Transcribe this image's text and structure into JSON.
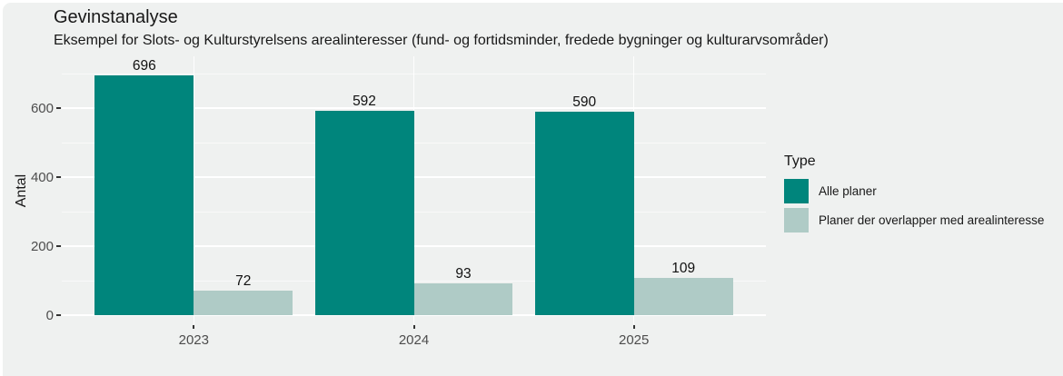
{
  "title": "Gevinstanalyse",
  "subtitle": "Eksempel for Slots- og Kulturstyrelsens arealinteresser (fund- og fortidsminder, fredede bygninger og kulturarvsområder)",
  "colors": {
    "background": "#EFF1F0",
    "grid": "#FFFFFF",
    "series_all": "#00857C",
    "series_overlap": "#AFCBC6",
    "axis_text": "#4D4D4D",
    "text": "#181818"
  },
  "chart_data": {
    "type": "bar",
    "categories": [
      "2023",
      "2024",
      "2025"
    ],
    "series": [
      {
        "name": "Alle planer",
        "color": "#00857C",
        "values": [
          696,
          592,
          590
        ]
      },
      {
        "name": "Planer der overlapper med arealinteresse",
        "color": "#AFCBC6",
        "values": [
          72,
          93,
          109
        ]
      }
    ],
    "title": "Gevinstanalyse",
    "subtitle": "Eksempel for Slots- og Kulturstyrelsens arealinteresser (fund- og fortidsminder, fredede bygninger og kulturarvsområder)",
    "xlabel": "",
    "ylabel": "Antal",
    "ylim": [
      0,
      742
    ],
    "yticks": [
      0,
      200,
      400,
      600
    ],
    "yticks_minor": [
      100,
      300,
      500,
      700
    ],
    "grid": true,
    "bar_value_labels": true,
    "legend_title": "Type",
    "legend_position": "right"
  }
}
